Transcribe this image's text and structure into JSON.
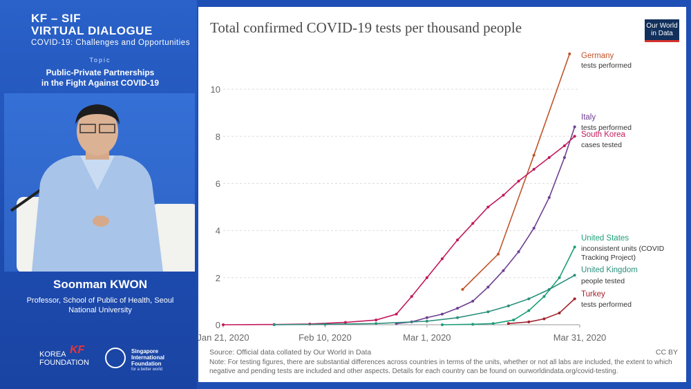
{
  "event": {
    "line1": "KF – SIF",
    "line2": "VIRTUAL DIALOGUE",
    "line3": "COVID-19: Challenges and Opportunities",
    "topic_label": "Topic",
    "topic_line1": "Public-Private Partnerships",
    "topic_line2": "in the Fight Against COVID-19"
  },
  "speaker": {
    "name": "Soonman KWON",
    "role": "Professor, School of Public of Health, Seoul National University"
  },
  "logos": {
    "kf_line1": "KOREA",
    "kf_line2": "FOUNDATION",
    "kf_mark": "KF",
    "sif_line1": "Singapore",
    "sif_line2": "International",
    "sif_line3": "Foundation",
    "sif_tagline": "for a better world"
  },
  "owid_logo": {
    "line1": "Our World",
    "line2": "in Data"
  },
  "colors": {
    "germany": "#c0532b",
    "italy": "#6d3e91",
    "south_korea": "#c2185b",
    "united_states": "#1b9e77",
    "united_kingdom": "#2a8f7d",
    "turkey": "#a0222d"
  },
  "footer": {
    "source": "Source: Official data collated by Our World in Data",
    "license": "CC BY",
    "note": "Note: For testing figures, there are substantial differences across countries in terms of the units, whether or not all labs are included, the extent to which negative and pending tests are included and other aspects. Details for each country can be found on ourworldindata.org/covid-testing."
  },
  "chart_data": {
    "type": "line",
    "title": "Total confirmed COVID-19 tests per thousand people",
    "x_start": "2020-01-21",
    "x_end": "2020-03-31",
    "x_ticks": [
      "Jan 21, 2020",
      "Feb 10, 2020",
      "Mar 1, 2020",
      "Mar 31, 2020"
    ],
    "y_ticks": [
      "0",
      "2",
      "4",
      "6",
      "8",
      "10"
    ],
    "ylim": [
      0,
      11.5
    ],
    "grid": true,
    "series": [
      {
        "name": "Germany",
        "sublabel": "tests performed",
        "color_key": "germany",
        "points": [
          [
            "2020-03-08",
            1.5
          ],
          [
            "2020-03-15",
            3.0
          ],
          [
            "2020-03-22",
            7.2
          ],
          [
            "2020-03-29",
            11.5
          ]
        ]
      },
      {
        "name": "Italy",
        "sublabel": "tests performed",
        "color_key": "italy",
        "points": [
          [
            "2020-02-24",
            0.05
          ],
          [
            "2020-02-27",
            0.12
          ],
          [
            "2020-03-01",
            0.3
          ],
          [
            "2020-03-04",
            0.45
          ],
          [
            "2020-03-07",
            0.7
          ],
          [
            "2020-03-10",
            1.0
          ],
          [
            "2020-03-13",
            1.6
          ],
          [
            "2020-03-16",
            2.3
          ],
          [
            "2020-03-19",
            3.1
          ],
          [
            "2020-03-22",
            4.1
          ],
          [
            "2020-03-25",
            5.4
          ],
          [
            "2020-03-28",
            7.1
          ],
          [
            "2020-03-30",
            8.4
          ]
        ]
      },
      {
        "name": "South Korea",
        "sublabel": "cases tested",
        "color_key": "south_korea",
        "points": [
          [
            "2020-01-21",
            0.0
          ],
          [
            "2020-01-31",
            0.01
          ],
          [
            "2020-02-07",
            0.03
          ],
          [
            "2020-02-14",
            0.1
          ],
          [
            "2020-02-20",
            0.2
          ],
          [
            "2020-02-24",
            0.45
          ],
          [
            "2020-02-27",
            1.2
          ],
          [
            "2020-03-01",
            2.0
          ],
          [
            "2020-03-04",
            2.8
          ],
          [
            "2020-03-07",
            3.6
          ],
          [
            "2020-03-10",
            4.3
          ],
          [
            "2020-03-13",
            5.0
          ],
          [
            "2020-03-16",
            5.5
          ],
          [
            "2020-03-19",
            6.1
          ],
          [
            "2020-03-22",
            6.6
          ],
          [
            "2020-03-25",
            7.1
          ],
          [
            "2020-03-28",
            7.6
          ],
          [
            "2020-03-30",
            8.0
          ]
        ]
      },
      {
        "name": "United States",
        "sublabel": "inconsistent units (COVID Tracking Project)",
        "color_key": "united_states",
        "points": [
          [
            "2020-03-04",
            0.0
          ],
          [
            "2020-03-10",
            0.02
          ],
          [
            "2020-03-14",
            0.05
          ],
          [
            "2020-03-18",
            0.2
          ],
          [
            "2020-03-21",
            0.6
          ],
          [
            "2020-03-24",
            1.2
          ],
          [
            "2020-03-27",
            2.0
          ],
          [
            "2020-03-30",
            3.3
          ]
        ]
      },
      {
        "name": "United Kingdom",
        "sublabel": "people tested",
        "color_key": "united_kingdom",
        "points": [
          [
            "2020-01-31",
            0.0
          ],
          [
            "2020-02-10",
            0.02
          ],
          [
            "2020-02-20",
            0.05
          ],
          [
            "2020-03-01",
            0.15
          ],
          [
            "2020-03-07",
            0.3
          ],
          [
            "2020-03-13",
            0.55
          ],
          [
            "2020-03-17",
            0.8
          ],
          [
            "2020-03-21",
            1.1
          ],
          [
            "2020-03-25",
            1.5
          ],
          [
            "2020-03-30",
            2.1
          ]
        ]
      },
      {
        "name": "Turkey",
        "sublabel": "tests performed",
        "color_key": "turkey",
        "points": [
          [
            "2020-03-17",
            0.05
          ],
          [
            "2020-03-21",
            0.12
          ],
          [
            "2020-03-24",
            0.25
          ],
          [
            "2020-03-27",
            0.5
          ],
          [
            "2020-03-30",
            1.1
          ]
        ]
      }
    ]
  }
}
